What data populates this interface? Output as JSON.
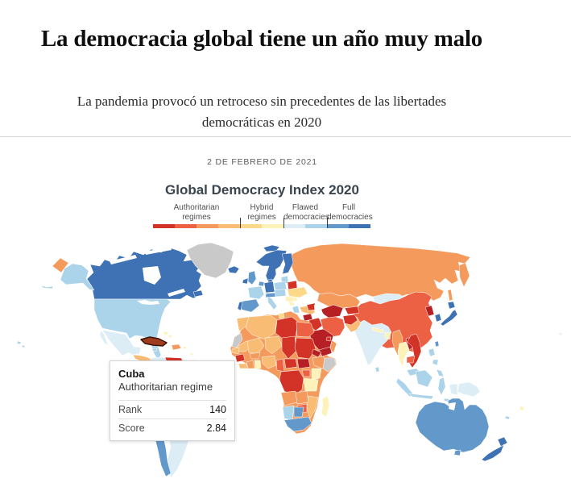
{
  "article": {
    "title": "La democracia global tiene un año muy malo",
    "subtitle": "La pandemia provocó un retroceso sin precedentes de las libertades democráticas en 2020",
    "date": "2 DE FEBRERO DE 2021"
  },
  "chart": {
    "title": "Global Democracy Index 2020",
    "legend": {
      "groups": [
        {
          "label": "Authoritarian\nregimes",
          "colors": [
            "#d33227",
            "#ec6044",
            "#f49a5c",
            "#f9bc74"
          ]
        },
        {
          "label": "Hybrid\nregimes",
          "colors": [
            "#fbd988",
            "#fdf3ba"
          ]
        },
        {
          "label": "Flawed\ndemocracies",
          "colors": [
            "#dcedf6",
            "#abd3e9"
          ]
        },
        {
          "label": "Full\ndemocracies",
          "colors": [
            "#6298ca",
            "#3e72b4"
          ]
        }
      ],
      "tick_positions_pct": [
        40,
        60,
        80
      ]
    },
    "tooltip": {
      "country": "Cuba",
      "regime": "Authoritarian regime",
      "rows": [
        {
          "label": "Rank",
          "value": "140"
        },
        {
          "label": "Score",
          "value": "2.84"
        }
      ]
    }
  },
  "chart_data": {
    "type": "choropleth_map",
    "title": "Global Democracy Index 2020",
    "categories": [
      "Authoritarian regimes",
      "Hybrid regimes",
      "Flawed democracies",
      "Full democracies"
    ],
    "scale": {
      "min": 0,
      "max": 10,
      "bins": 10
    },
    "legend_position": "top",
    "highlighted_point": {
      "country": "Cuba",
      "category": "Authoritarian regime",
      "rank": 140,
      "score": 2.84
    }
  },
  "map": {
    "palette": {
      "auth_dark": "#b61f24",
      "auth_red": "#d33227",
      "auth_orange_red": "#ec6044",
      "auth_orange": "#f49a5c",
      "auth_light_orange": "#f9bc74",
      "hyb_yellow": "#fbd988",
      "hyb_pale_yellow": "#fdf3ba",
      "flaw_pale_blue": "#dcedf6",
      "flaw_light_blue": "#abd3e9",
      "full_medium_blue": "#6298ca",
      "full_dark_blue": "#3e72b4",
      "no_data": "#c9c9c9"
    },
    "highlight": {
      "region": "cuba",
      "fill": "#a03c1d",
      "stroke": "#3a1608",
      "stroke_width": 1.5
    },
    "regions": {
      "chukotka": "auth_orange",
      "alaska": "flaw_light_blue",
      "aleutians": "flaw_light_blue",
      "canada": "full_dark_blue",
      "newfoundland": "full_dark_blue",
      "greenland": "no_data",
      "usa": "flaw_light_blue",
      "hawaii": "flaw_light_blue",
      "mexico": "flaw_pale_blue",
      "baja": "flaw_pale_blue",
      "guatemala_honduras": "auth_light_orange",
      "nicaragua": "auth_orange_red",
      "costa_rica_panama": "flaw_light_blue",
      "cuba": "auth_orange_red",
      "jamaica": "flaw_light_blue",
      "hispaniola": "auth_orange",
      "puerto_rico": "hyb_pale_yellow",
      "bahamas": "hyb_pale_yellow",
      "lesser_antilles": "hyb_pale_yellow",
      "south_america": "flaw_pale_blue",
      "venezuela": "auth_red",
      "brazil": "flaw_light_blue",
      "chile": "full_medium_blue",
      "uruguay": "full_medium_blue",
      "iceland": "full_dark_blue",
      "svalbard": "full_dark_blue",
      "uk": "full_medium_blue",
      "ireland": "full_dark_blue",
      "norway_sweden": "full_dark_blue",
      "finland": "full_dark_blue",
      "denmark": "full_dark_blue",
      "baltics": "flaw_light_blue",
      "belarus": "auth_red",
      "poland": "flaw_light_blue",
      "germany": "full_dark_blue",
      "benelux": "full_medium_blue",
      "france": "flaw_light_blue",
      "alpine": "full_medium_blue",
      "iberia": "full_medium_blue",
      "portugal": "full_dark_blue",
      "italy": "flaw_light_blue",
      "czech_hungary": "flaw_light_blue",
      "balkans": "hyb_pale_yellow",
      "romania": "hyb_pale_yellow",
      "greece": "flaw_light_blue",
      "ukraine": "hyb_yellow",
      "turkey": "auth_light_orange",
      "azerbaijan": "auth_red",
      "russia": "auth_orange",
      "kamchatka": "auth_orange",
      "sakhalin": "auth_orange",
      "kazakhstan": "auth_orange",
      "mongolia": "flaw_pale_blue",
      "china": "auth_orange_red",
      "north_korea": "auth_dark",
      "south_korea": "full_dark_blue",
      "japan": "full_dark_blue",
      "taiwan": "full_medium_blue",
      "india": "flaw_pale_blue",
      "pakistan": "auth_light_orange",
      "afghanistan": "auth_red",
      "nepal": "hyb_pale_yellow",
      "bangladesh": "hyb_pale_yellow",
      "sri_lanka": "flaw_light_blue",
      "iran": "auth_orange_red",
      "iraq": "auth_red",
      "syria": "auth_dark",
      "saudi_arabia": "auth_dark",
      "yemen": "auth_dark",
      "oman": "auth_orange",
      "gulf_states": "auth_red",
      "israel": "flaw_light_blue",
      "turkmen_uzbek": "auth_dark",
      "kyrgyz_tajik": "auth_red",
      "myanmar": "auth_orange",
      "thailand": "hyb_pale_yellow",
      "laos": "auth_dark",
      "vietnam": "auth_red",
      "cambodia": "auth_orange_red",
      "malaysia": "flaw_light_blue",
      "borneo": "flaw_light_blue",
      "sumatra": "flaw_light_blue",
      "java": "flaw_light_blue",
      "sulawesi": "flaw_light_blue",
      "philippines": "flaw_light_blue",
      "png": "flaw_pale_blue",
      "west_papua": "flaw_pale_blue",
      "timor": "flaw_light_blue",
      "australia": "full_medium_blue",
      "tasmania": "full_medium_blue",
      "new_zealand": "full_dark_blue",
      "fiji": "hyb_pale_yellow",
      "new_caledonia": "flaw_light_blue",
      "micronesia_dot": "flaw_pale_blue",
      "africa": "auth_orange",
      "morocco": "auth_light_orange",
      "western_sahara": "no_data",
      "algeria": "auth_light_orange",
      "tunisia": "hyb_yellow",
      "libya": "auth_red",
      "egypt": "auth_orange_red",
      "mauritania": "auth_light_orange",
      "mali": "auth_light_orange",
      "niger": "auth_light_orange",
      "chad": "auth_red",
      "sudan": "auth_red",
      "eritrea": "auth_dark",
      "ethiopia": "auth_orange",
      "somalia": "no_data",
      "senegal": "auth_light_orange",
      "guinea": "auth_red",
      "sierra_liberia": "auth_light_orange",
      "ivory_coast": "auth_orange",
      "ghana": "hyb_pale_yellow",
      "burkina": "auth_orange",
      "nigeria": "auth_light_orange",
      "cameroon": "auth_orange_red",
      "central_african_republic": "auth_red",
      "south_sudan": "auth_dark",
      "drc": "auth_red",
      "uganda": "auth_orange_red",
      "kenya": "hyb_pale_yellow",
      "tanzania": "hyb_pale_yellow",
      "angola": "auth_orange",
      "zambia": "auth_orange",
      "mozambique": "auth_light_orange",
      "zimbabwe": "auth_orange_red",
      "namibia": "flaw_light_blue",
      "botswana": "full_medium_blue",
      "south_africa": "full_medium_blue",
      "madagascar": "hyb_pale_yellow"
    }
  }
}
